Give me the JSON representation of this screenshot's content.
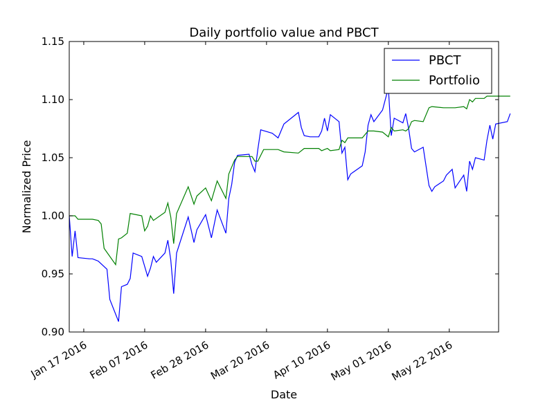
{
  "chart_data": {
    "type": "line",
    "title": "Daily portfolio value and PBCT",
    "xlabel": "Date",
    "ylabel": "Normalized Price",
    "xlim": [
      "2016-01-12",
      "2016-06-08"
    ],
    "ylim": [
      0.9,
      1.15
    ],
    "x_ticks": [
      "2016-01-17",
      "2016-02-07",
      "2016-02-28",
      "2016-03-20",
      "2016-04-10",
      "2016-05-01",
      "2016-05-22"
    ],
    "x_tick_labels": [
      "Jan 17 2016",
      "Feb 07 2016",
      "Feb 28 2016",
      "Mar 20 2016",
      "Apr 10 2016",
      "May 01 2016",
      "May 22 2016"
    ],
    "y_ticks": [
      0.9,
      0.95,
      1.0,
      1.05,
      1.1,
      1.15
    ],
    "y_tick_labels": [
      "0.90",
      "0.95",
      "1.00",
      "1.05",
      "1.10",
      "1.15"
    ],
    "grid": false,
    "legend": {
      "position": "top-right"
    },
    "series": [
      {
        "name": "PBCT",
        "color": "#0000ff",
        "points": [
          [
            "2016-01-12",
            1.0
          ],
          [
            "2016-01-13",
            0.965
          ],
          [
            "2016-01-14",
            0.987
          ],
          [
            "2016-01-15",
            0.964
          ],
          [
            "2016-01-19",
            0.963
          ],
          [
            "2016-01-20",
            0.963
          ],
          [
            "2016-01-21",
            0.962
          ],
          [
            "2016-01-22",
            0.961
          ],
          [
            "2016-01-25",
            0.954
          ],
          [
            "2016-01-26",
            0.928
          ],
          [
            "2016-01-29",
            0.909
          ],
          [
            "2016-01-30",
            0.939
          ],
          [
            "2016-02-01",
            0.941
          ],
          [
            "2016-02-02",
            0.946
          ],
          [
            "2016-02-03",
            0.968
          ],
          [
            "2016-02-06",
            0.965
          ],
          [
            "2016-02-08",
            0.948
          ],
          [
            "2016-02-09",
            0.955
          ],
          [
            "2016-02-10",
            0.965
          ],
          [
            "2016-02-11",
            0.96
          ],
          [
            "2016-02-14",
            0.968
          ],
          [
            "2016-02-15",
            0.979
          ],
          [
            "2016-02-16",
            0.962
          ],
          [
            "2016-02-17",
            0.933
          ],
          [
            "2016-02-18",
            0.968
          ],
          [
            "2016-02-22",
            0.999
          ],
          [
            "2016-02-24",
            0.977
          ],
          [
            "2016-02-25",
            0.988
          ],
          [
            "2016-02-28",
            1.001
          ],
          [
            "2016-03-01",
            0.981
          ],
          [
            "2016-03-03",
            1.005
          ],
          [
            "2016-03-06",
            0.985
          ],
          [
            "2016-03-07",
            1.015
          ],
          [
            "2016-03-08",
            1.027
          ],
          [
            "2016-03-09",
            1.046
          ],
          [
            "2016-03-10",
            1.052
          ],
          [
            "2016-03-14",
            1.053
          ],
          [
            "2016-03-15",
            1.044
          ],
          [
            "2016-03-16",
            1.038
          ],
          [
            "2016-03-17",
            1.057
          ],
          [
            "2016-03-18",
            1.074
          ],
          [
            "2016-03-22",
            1.071
          ],
          [
            "2016-03-24",
            1.067
          ],
          [
            "2016-03-26",
            1.079
          ],
          [
            "2016-03-31",
            1.089
          ],
          [
            "2016-04-01",
            1.076
          ],
          [
            "2016-04-02",
            1.069
          ],
          [
            "2016-04-04",
            1.068
          ],
          [
            "2016-04-07",
            1.068
          ],
          [
            "2016-04-08",
            1.073
          ],
          [
            "2016-04-09",
            1.084
          ],
          [
            "2016-04-10",
            1.073
          ],
          [
            "2016-04-11",
            1.087
          ],
          [
            "2016-04-14",
            1.081
          ],
          [
            "2016-04-15",
            1.054
          ],
          [
            "2016-04-16",
            1.059
          ],
          [
            "2016-04-17",
            1.031
          ],
          [
            "2016-04-18",
            1.036
          ],
          [
            "2016-04-22",
            1.043
          ],
          [
            "2016-04-23",
            1.055
          ],
          [
            "2016-04-24",
            1.078
          ],
          [
            "2016-04-25",
            1.087
          ],
          [
            "2016-04-26",
            1.081
          ],
          [
            "2016-04-29",
            1.091
          ],
          [
            "2016-05-01",
            1.11
          ],
          [
            "2016-05-02",
            1.069
          ],
          [
            "2016-05-03",
            1.084
          ],
          [
            "2016-05-06",
            1.08
          ],
          [
            "2016-05-07",
            1.088
          ],
          [
            "2016-05-08",
            1.075
          ],
          [
            "2016-05-09",
            1.058
          ],
          [
            "2016-05-10",
            1.055
          ],
          [
            "2016-05-13",
            1.059
          ],
          [
            "2016-05-15",
            1.026
          ],
          [
            "2016-05-16",
            1.021
          ],
          [
            "2016-05-17",
            1.025
          ],
          [
            "2016-05-20",
            1.03
          ],
          [
            "2016-05-21",
            1.035
          ],
          [
            "2016-05-23",
            1.04
          ],
          [
            "2016-05-24",
            1.024
          ],
          [
            "2016-05-27",
            1.035
          ],
          [
            "2016-05-28",
            1.021
          ],
          [
            "2016-05-29",
            1.047
          ],
          [
            "2016-05-30",
            1.04
          ],
          [
            "2016-05-31",
            1.05
          ],
          [
            "2016-06-03",
            1.048
          ],
          [
            "2016-06-04",
            1.065
          ],
          [
            "2016-06-05",
            1.078
          ],
          [
            "2016-06-06",
            1.066
          ],
          [
            "2016-06-07",
            1.079
          ],
          [
            "2016-06-11",
            1.081
          ],
          [
            "2016-06-12",
            1.088
          ]
        ]
      },
      {
        "name": "Portfolio",
        "color": "#008000",
        "points": [
          [
            "2016-01-12",
            1.0
          ],
          [
            "2016-01-14",
            1.0
          ],
          [
            "2016-01-15",
            0.997
          ],
          [
            "2016-01-20",
            0.997
          ],
          [
            "2016-01-22",
            0.996
          ],
          [
            "2016-01-23",
            0.993
          ],
          [
            "2016-01-24",
            0.972
          ],
          [
            "2016-01-28",
            0.958
          ],
          [
            "2016-01-29",
            0.98
          ],
          [
            "2016-01-30",
            0.981
          ],
          [
            "2016-02-01",
            0.985
          ],
          [
            "2016-02-02",
            1.002
          ],
          [
            "2016-02-06",
            1.0
          ],
          [
            "2016-02-07",
            0.987
          ],
          [
            "2016-02-08",
            0.991
          ],
          [
            "2016-02-09",
            1.0
          ],
          [
            "2016-02-10",
            0.996
          ],
          [
            "2016-02-14",
            1.003
          ],
          [
            "2016-02-15",
            1.011
          ],
          [
            "2016-02-16",
            0.999
          ],
          [
            "2016-02-17",
            0.976
          ],
          [
            "2016-02-18",
            1.002
          ],
          [
            "2016-02-22",
            1.025
          ],
          [
            "2016-02-24",
            1.01
          ],
          [
            "2016-02-25",
            1.017
          ],
          [
            "2016-02-28",
            1.024
          ],
          [
            "2016-03-01",
            1.013
          ],
          [
            "2016-03-03",
            1.03
          ],
          [
            "2016-03-06",
            1.015
          ],
          [
            "2016-03-07",
            1.036
          ],
          [
            "2016-03-09",
            1.048
          ],
          [
            "2016-03-10",
            1.051
          ],
          [
            "2016-03-15",
            1.051
          ],
          [
            "2016-03-16",
            1.047
          ],
          [
            "2016-03-17",
            1.047
          ],
          [
            "2016-03-19",
            1.057
          ],
          [
            "2016-03-23",
            1.057
          ],
          [
            "2016-03-24",
            1.057
          ],
          [
            "2016-03-26",
            1.055
          ],
          [
            "2016-03-31",
            1.054
          ],
          [
            "2016-04-02",
            1.058
          ],
          [
            "2016-04-07",
            1.058
          ],
          [
            "2016-04-08",
            1.056
          ],
          [
            "2016-04-09",
            1.057
          ],
          [
            "2016-04-10",
            1.058
          ],
          [
            "2016-04-11",
            1.056
          ],
          [
            "2016-04-14",
            1.057
          ],
          [
            "2016-04-15",
            1.065
          ],
          [
            "2016-04-16",
            1.063
          ],
          [
            "2016-04-17",
            1.067
          ],
          [
            "2016-04-22",
            1.067
          ],
          [
            "2016-04-23",
            1.07
          ],
          [
            "2016-04-24",
            1.073
          ],
          [
            "2016-04-26",
            1.073
          ],
          [
            "2016-04-29",
            1.072
          ],
          [
            "2016-05-01",
            1.068
          ],
          [
            "2016-05-02",
            1.076
          ],
          [
            "2016-05-03",
            1.073
          ],
          [
            "2016-05-06",
            1.074
          ],
          [
            "2016-05-07",
            1.073
          ],
          [
            "2016-05-08",
            1.075
          ],
          [
            "2016-05-09",
            1.081
          ],
          [
            "2016-05-10",
            1.082
          ],
          [
            "2016-05-13",
            1.081
          ],
          [
            "2016-05-15",
            1.093
          ],
          [
            "2016-05-16",
            1.094
          ],
          [
            "2016-05-20",
            1.093
          ],
          [
            "2016-05-24",
            1.093
          ],
          [
            "2016-05-27",
            1.094
          ],
          [
            "2016-05-28",
            1.092
          ],
          [
            "2016-05-29",
            1.1
          ],
          [
            "2016-05-30",
            1.098
          ],
          [
            "2016-05-31",
            1.101
          ],
          [
            "2016-06-03",
            1.101
          ],
          [
            "2016-06-04",
            1.103
          ],
          [
            "2016-06-12",
            1.103
          ]
        ]
      }
    ]
  }
}
